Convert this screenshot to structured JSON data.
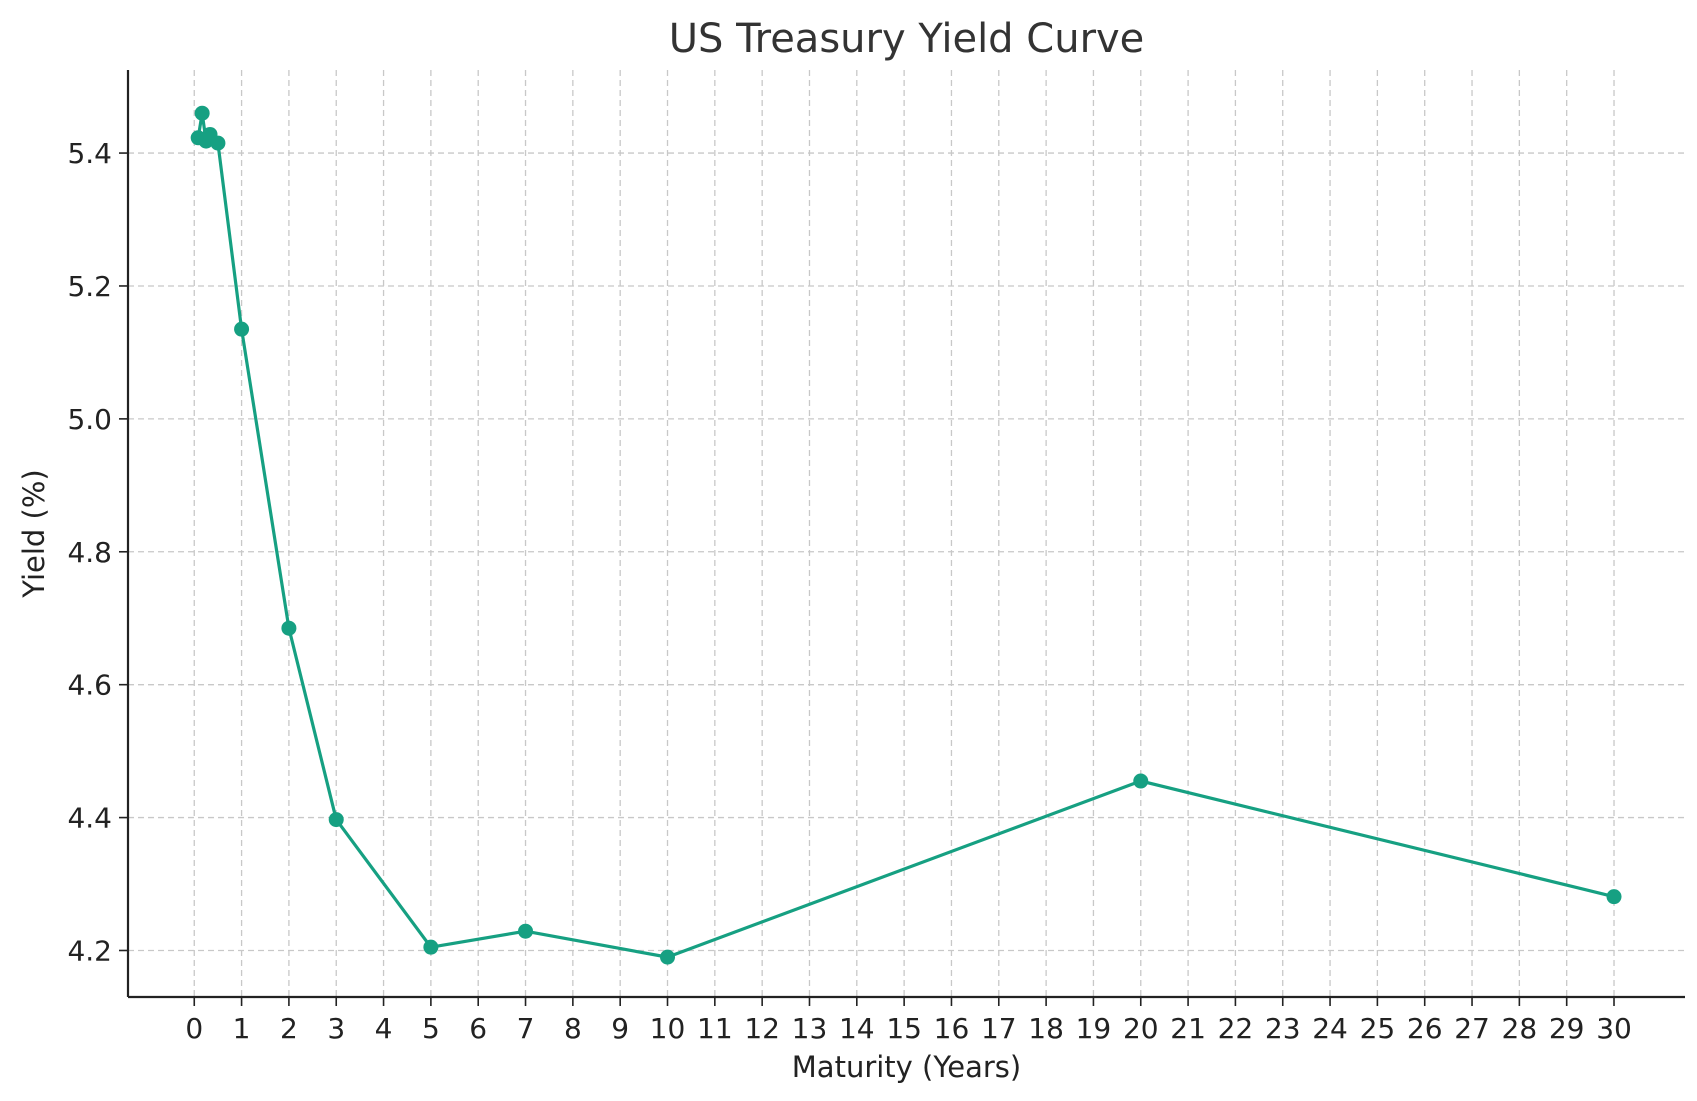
{
  "chart_data": {
    "type": "line",
    "title": "US Treasury Yield Curve",
    "xlabel": "Maturity (Years)",
    "ylabel": "Yield (%)",
    "xlim": [
      -1.4,
      31.5
    ],
    "ylim": [
      4.13,
      5.525
    ],
    "x_ticks": [
      0,
      1,
      2,
      3,
      4,
      5,
      6,
      7,
      8,
      9,
      10,
      11,
      12,
      13,
      14,
      15,
      16,
      17,
      18,
      19,
      20,
      21,
      22,
      23,
      24,
      25,
      26,
      27,
      28,
      29,
      30
    ],
    "y_ticks": [
      4.2,
      4.4,
      4.6,
      4.8,
      5.0,
      5.2,
      5.4
    ],
    "y_tick_labels": [
      "4.2",
      "4.4",
      "4.6",
      "4.8",
      "5.0",
      "5.2",
      "5.4"
    ],
    "grid": true,
    "color": "#16a082",
    "series": [
      {
        "x": [
          0.083,
          0.167,
          0.25,
          0.333,
          0.5,
          1,
          2,
          3,
          5,
          7,
          10,
          20,
          30
        ],
        "y": [
          5.423,
          5.46,
          5.418,
          5.428,
          5.415,
          5.135,
          4.685,
          4.397,
          4.205,
          4.229,
          4.19,
          4.455,
          4.281
        ]
      }
    ]
  }
}
